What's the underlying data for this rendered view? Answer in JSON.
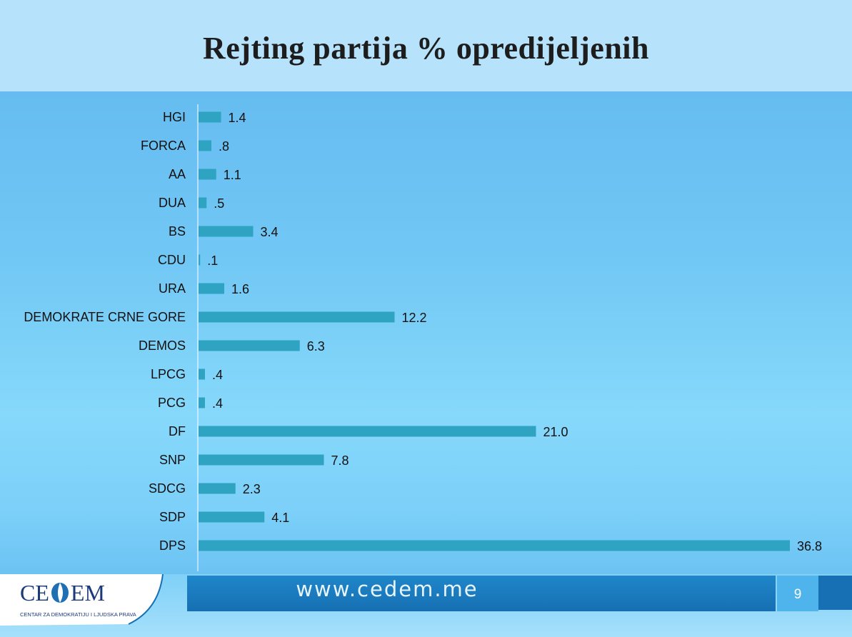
{
  "slide": {
    "title": "Rejting partija % opredijeljenih",
    "footer_url": "www.cedem.me",
    "page_number": "9",
    "logo_left": "CE",
    "logo_right": "EM",
    "logo_subtitle": "CENTAR ZA DEMOKRATIJU I LJUDSKA PRAVA"
  },
  "colors": {
    "bar": "#2ea3c2",
    "footer_blue": "#1670b3"
  },
  "chart_data": {
    "type": "bar",
    "orientation": "horizontal",
    "categories": [
      "HGI",
      "FORCA",
      "AA",
      "DUA",
      "BS",
      "CDU",
      "URA",
      "DEMOKRATE CRNE GORE",
      "DEMOS",
      "LPCG",
      "PCG",
      "DF",
      "SNP",
      "SDCG",
      "SDP",
      "DPS"
    ],
    "values": [
      1.4,
      0.8,
      1.1,
      0.5,
      3.4,
      0.1,
      1.6,
      12.2,
      6.3,
      0.4,
      0.4,
      21.0,
      7.8,
      2.3,
      4.1,
      36.8
    ],
    "value_labels": [
      "1.4",
      ".8",
      "1.1",
      ".5",
      "3.4",
      ".1",
      "1.6",
      "12.2",
      "6.3",
      ".4",
      ".4",
      "21.0",
      "7.8",
      "2.3",
      "4.1",
      "36.8"
    ],
    "title": "Rejting partija % opredijeljenih",
    "xlabel": "",
    "ylabel": "",
    "xlim": [
      0,
      37
    ],
    "grid": false,
    "legend": "none"
  }
}
